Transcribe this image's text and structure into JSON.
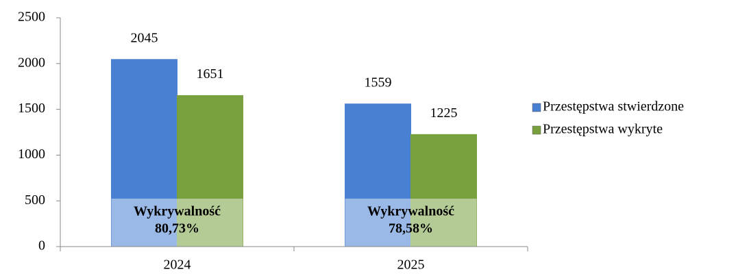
{
  "chart_data": {
    "type": "bar",
    "categories": [
      "2024",
      "2025"
    ],
    "series": [
      {
        "name": "Przestępstwa stwierdzone",
        "color": "#4a80d2",
        "values": [
          2045,
          1559
        ]
      },
      {
        "name": "Przestępstwa wykryte",
        "color": "#79a03f",
        "values": [
          1651,
          1225
        ]
      }
    ],
    "annotations": [
      [
        "Wykrywalność",
        "80,73%"
      ],
      [
        "Wykrywalność",
        "78,58%"
      ]
    ],
    "ylim": [
      0,
      2500
    ],
    "yticks": [
      0,
      500,
      1000,
      1500,
      2000,
      2500
    ],
    "legend": "right"
  }
}
